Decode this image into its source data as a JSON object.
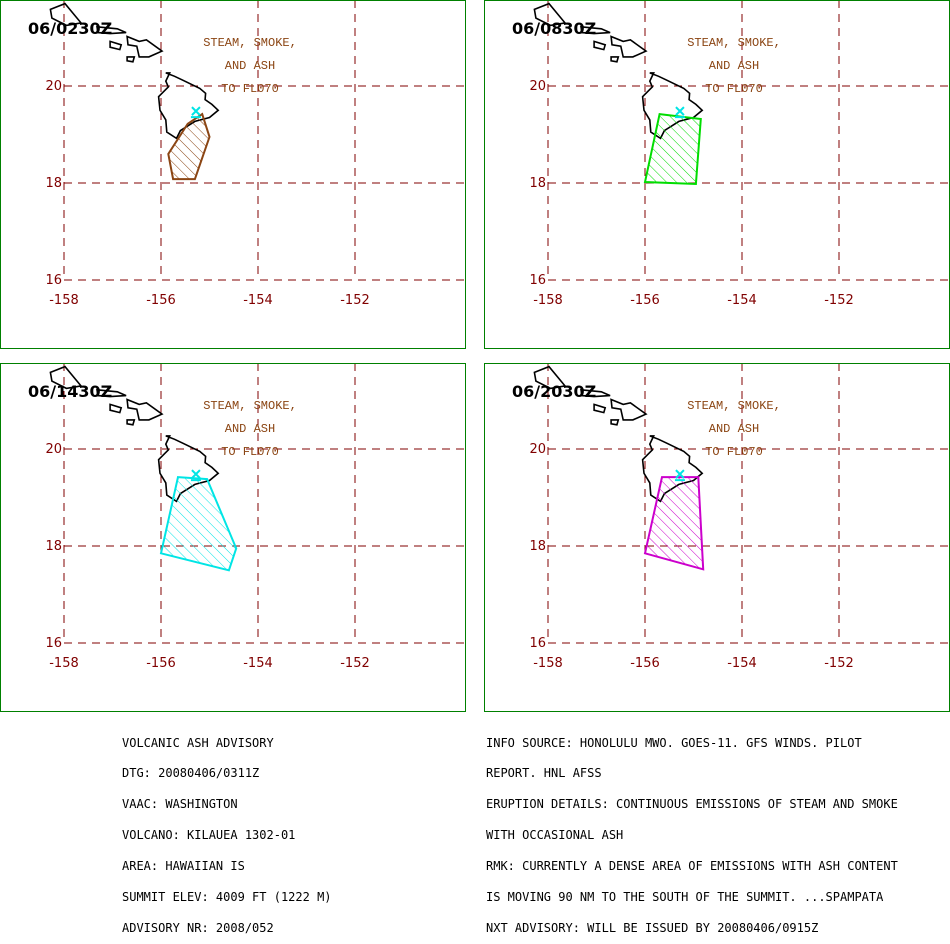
{
  "map": {
    "lon_labels": [
      "-158",
      "-156",
      "-154",
      "-152"
    ],
    "lat_labels": [
      "20",
      "18",
      "16"
    ],
    "lon_lines": [
      -158,
      -156,
      -154,
      -152
    ],
    "lat_lines": [
      20,
      18,
      16
    ],
    "annotation": [
      "STEAM, SMOKE,",
      "AND ASH",
      "TO FL070"
    ],
    "volcano_marker": {
      "lon": -155.28,
      "lat": 19.42
    },
    "colors": {
      "frame": "#008000",
      "grid": "#800000",
      "coast": "#000000",
      "annotation": "#8b4513",
      "volcano": "#00e5e5"
    }
  },
  "panels": [
    {
      "time": "06/0230Z",
      "color": "#8b4513",
      "polygon": [
        [
          -155.15,
          19.42
        ],
        [
          -155.0,
          18.95
        ],
        [
          -155.3,
          18.08
        ],
        [
          -155.75,
          18.08
        ],
        [
          -155.85,
          18.6
        ],
        [
          -155.45,
          19.22
        ]
      ]
    },
    {
      "time": "06/0830Z",
      "color": "#00dd00",
      "polygon": [
        [
          -155.7,
          19.42
        ],
        [
          -154.85,
          19.32
        ],
        [
          -154.95,
          17.98
        ],
        [
          -156.0,
          18.02
        ]
      ]
    },
    {
      "time": "06/1430Z",
      "color": "#00e5e5",
      "polygon": [
        [
          -155.65,
          19.42
        ],
        [
          -155.05,
          19.38
        ],
        [
          -154.45,
          17.95
        ],
        [
          -154.6,
          17.5
        ],
        [
          -156.0,
          17.85
        ]
      ]
    },
    {
      "time": "06/2030Z",
      "color": "#cc00cc",
      "polygon": [
        [
          -155.65,
          19.42
        ],
        [
          -154.9,
          19.42
        ],
        [
          -154.8,
          17.52
        ],
        [
          -156.0,
          17.85
        ]
      ]
    }
  ],
  "advisory_left": [
    "VOLCANIC ASH ADVISORY",
    "DTG: 20080406/0311Z",
    "VAAC: WASHINGTON",
    "VOLCANO: KILAUEA 1302-01",
    "AREA: HAWAIIAN IS",
    "SUMMIT ELEV: 4009 FT (1222 M)",
    "ADVISORY NR: 2008/052"
  ],
  "advisory_right": [
    "INFO SOURCE: HONOLULU MWO. GOES-11. GFS WINDS. PILOT",
    "REPORT. HNL AFSS",
    "ERUPTION DETAILS: CONTINUOUS EMISSIONS OF STEAM AND SMOKE",
    "WITH OCCASIONAL ASH",
    "RMK: CURRENTLY A DENSE AREA OF EMISSIONS WITH ASH CONTENT",
    "IS MOVING 90 NM TO THE SOUTH OF THE SUMMIT. ...SPAMPATA",
    "NXT ADVISORY: WILL BE ISSUED BY 20080406/0915Z"
  ]
}
